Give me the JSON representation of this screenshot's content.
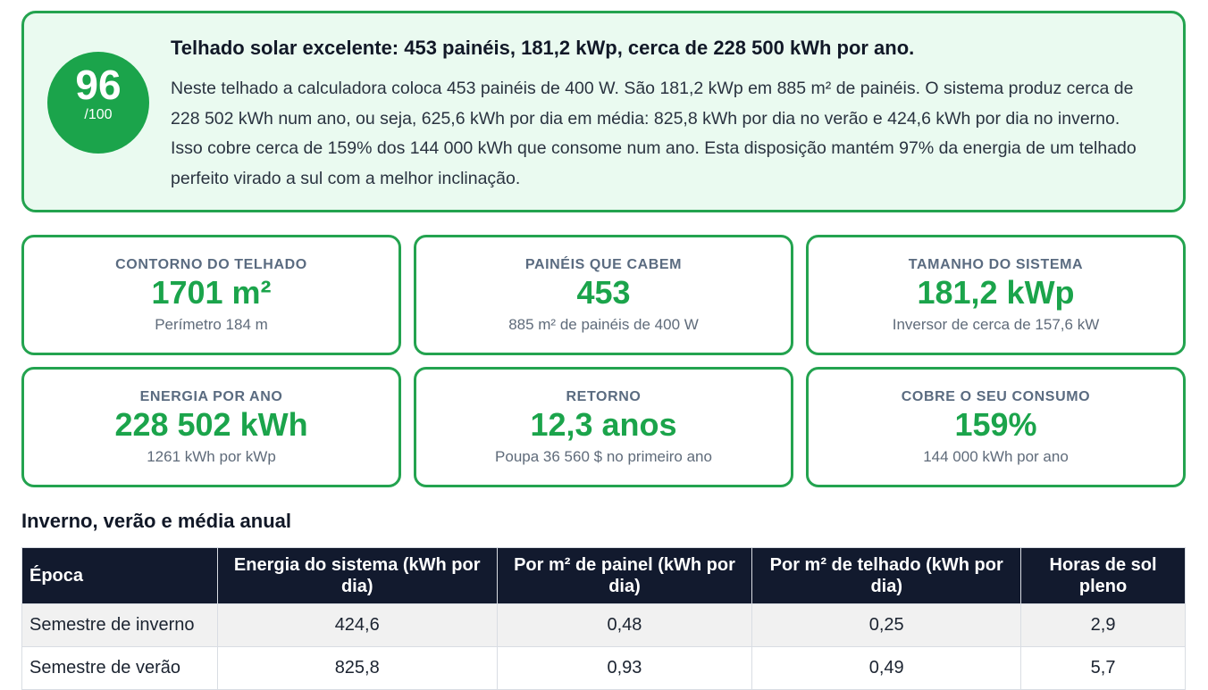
{
  "summary": {
    "score": 96,
    "score_max": "/100",
    "title": "Telhado solar excelente: 453 painéis, 181,2 kWp, cerca de 228 500 kWh por ano.",
    "text": "Neste telhado a calculadora coloca 453 painéis de 400 W. São 181,2 kWp em 885 m² de painéis. O sistema produz cerca de 228 502 kWh num ano, ou seja, 625,6 kWh por dia em média: 825,8 kWh por dia no verão e 424,6 kWh por dia no inverno. Isso cobre cerca de 159% dos 144 000 kWh que consome num ano. Esta disposição mantém 97% da energia de um telhado perfeito virado a sul com a melhor inclinação."
  },
  "cards": [
    {
      "label": "CONTORNO DO TELHADO",
      "value": "1701 m²",
      "sub": "Perímetro 184 m"
    },
    {
      "label": "PAINÉIS QUE CABEM",
      "value": "453",
      "sub": "885 m² de painéis de 400 W"
    },
    {
      "label": "TAMANHO DO SISTEMA",
      "value": "181,2 kWp",
      "sub": "Inversor de cerca de 157,6 kW"
    },
    {
      "label": "ENERGIA POR ANO",
      "value": "228 502 kWh",
      "sub": "1261 kWh por kWp"
    },
    {
      "label": "RETORNO",
      "value": "12,3 anos",
      "sub": "Poupa 36 560 $ no primeiro ano"
    },
    {
      "label": "COBRE O SEU CONSUMO",
      "value": "159%",
      "sub": "144 000 kWh por ano"
    }
  ],
  "table": {
    "title": "Inverno, verão e média anual",
    "headers": [
      "Época",
      "Energia do sistema (kWh por dia)",
      "Por m² de painel (kWh por dia)",
      "Por m² de telhado (kWh por dia)",
      "Horas de sol pleno"
    ],
    "rows": [
      [
        "Semestre de inverno",
        "424,6",
        "0,48",
        "0,25",
        "2,9"
      ],
      [
        "Semestre de verão",
        "825,8",
        "0,93",
        "0,49",
        "5,7"
      ]
    ]
  }
}
